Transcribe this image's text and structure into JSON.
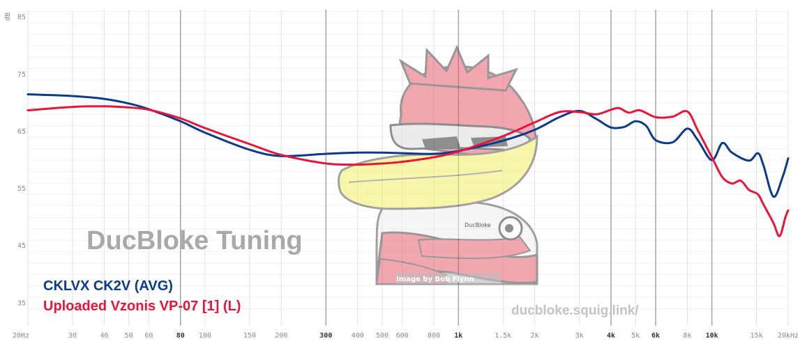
{
  "chart_data": {
    "type": "line",
    "ylabel": "dB",
    "xscale": "log",
    "xlim": [
      20,
      20000
    ],
    "ylim": [
      32,
      88
    ],
    "grid": true,
    "legend_placement": "bottom-left",
    "yticks": [
      35,
      45,
      55,
      65,
      75,
      85
    ],
    "xticks": [
      {
        "v": 20,
        "label": "20Hz",
        "major": false
      },
      {
        "v": 30,
        "label": "30",
        "major": false
      },
      {
        "v": 40,
        "label": "40",
        "major": false
      },
      {
        "v": 50,
        "label": "50",
        "major": false
      },
      {
        "v": 60,
        "label": "60",
        "major": false
      },
      {
        "v": 80,
        "label": "80",
        "major": true
      },
      {
        "v": 100,
        "label": "100",
        "major": false
      },
      {
        "v": 150,
        "label": "150",
        "major": false
      },
      {
        "v": 200,
        "label": "200",
        "major": false
      },
      {
        "v": 300,
        "label": "300",
        "major": true
      },
      {
        "v": 400,
        "label": "400",
        "major": false
      },
      {
        "v": 500,
        "label": "500",
        "major": false
      },
      {
        "v": 600,
        "label": "600",
        "major": false
      },
      {
        "v": 800,
        "label": "800",
        "major": false
      },
      {
        "v": 1000,
        "label": "1k",
        "major": true
      },
      {
        "v": 1500,
        "label": "1.5k",
        "major": false
      },
      {
        "v": 2000,
        "label": "2k",
        "major": false
      },
      {
        "v": 3000,
        "label": "3k",
        "major": false
      },
      {
        "v": 4000,
        "label": "4k",
        "major": true
      },
      {
        "v": 5000,
        "label": "5k",
        "major": false
      },
      {
        "v": 6000,
        "label": "6k",
        "major": true
      },
      {
        "v": 8000,
        "label": "8k",
        "major": false
      },
      {
        "v": 10000,
        "label": "10k",
        "major": true
      },
      {
        "v": 15000,
        "label": "15k",
        "major": false
      },
      {
        "v": 20000,
        "label": "20kHz",
        "major": false
      }
    ],
    "series": [
      {
        "name": "CKLVX CK2V (AVG)",
        "color": "#0a3a8c",
        "points": [
          [
            20,
            71.5
          ],
          [
            30,
            71.2
          ],
          [
            40,
            70.7
          ],
          [
            50,
            69.9
          ],
          [
            60,
            68.9
          ],
          [
            80,
            66.8
          ],
          [
            100,
            64.8
          ],
          [
            150,
            61.8
          ],
          [
            200,
            60.7
          ],
          [
            300,
            61.1
          ],
          [
            400,
            61.3
          ],
          [
            500,
            61.3
          ],
          [
            600,
            61.2
          ],
          [
            800,
            61.1
          ],
          [
            1000,
            61.6
          ],
          [
            1500,
            63.4
          ],
          [
            2000,
            65.3
          ],
          [
            2500,
            67.5
          ],
          [
            3000,
            68.6
          ],
          [
            3500,
            67.2
          ],
          [
            4000,
            65.7
          ],
          [
            4500,
            65.8
          ],
          [
            5000,
            66.8
          ],
          [
            5500,
            66.0
          ],
          [
            6000,
            63.5
          ],
          [
            7000,
            63.1
          ],
          [
            8000,
            65.5
          ],
          [
            8800,
            63.5
          ],
          [
            10000,
            60.0
          ],
          [
            11000,
            63.0
          ],
          [
            12000,
            61.3
          ],
          [
            14000,
            59.9
          ],
          [
            15200,
            61.2
          ],
          [
            16000,
            59.0
          ],
          [
            17500,
            53.6
          ],
          [
            19000,
            57.0
          ],
          [
            20000,
            60.3
          ]
        ]
      },
      {
        "name": "Uploaded Vzonis VP-07 [1] (L)",
        "color": "#e8143a",
        "points": [
          [
            20,
            68.7
          ],
          [
            30,
            69.3
          ],
          [
            40,
            69.4
          ],
          [
            50,
            69.2
          ],
          [
            60,
            68.8
          ],
          [
            80,
            67.3
          ],
          [
            100,
            65.6
          ],
          [
            150,
            62.8
          ],
          [
            200,
            60.9
          ],
          [
            300,
            59.4
          ],
          [
            400,
            59.2
          ],
          [
            500,
            59.4
          ],
          [
            600,
            59.7
          ],
          [
            800,
            60.5
          ],
          [
            1000,
            61.5
          ],
          [
            1500,
            64.2
          ],
          [
            2000,
            66.6
          ],
          [
            2500,
            68.4
          ],
          [
            3000,
            68.4
          ],
          [
            3500,
            68.0
          ],
          [
            4000,
            68.8
          ],
          [
            4300,
            69.1
          ],
          [
            4700,
            68.3
          ],
          [
            5200,
            68.7
          ],
          [
            6000,
            67.5
          ],
          [
            7000,
            67.6
          ],
          [
            8000,
            68.5
          ],
          [
            8800,
            65.2
          ],
          [
            10000,
            60.5
          ],
          [
            11000,
            57.0
          ],
          [
            12000,
            55.9
          ],
          [
            13000,
            56.4
          ],
          [
            14000,
            54.8
          ],
          [
            15200,
            54.0
          ],
          [
            16000,
            52.2
          ],
          [
            17500,
            49.0
          ],
          [
            18500,
            46.7
          ],
          [
            19500,
            50.0
          ],
          [
            20000,
            51.2
          ]
        ]
      }
    ]
  },
  "watermark": {
    "brand": "DucBloke Tuning",
    "url": "ducbloke.squig.link/",
    "credit": "Image by Bob Flynn",
    "mascot_tag": "DucBloke",
    "mascot_icon": "duck-mascot-icon"
  }
}
